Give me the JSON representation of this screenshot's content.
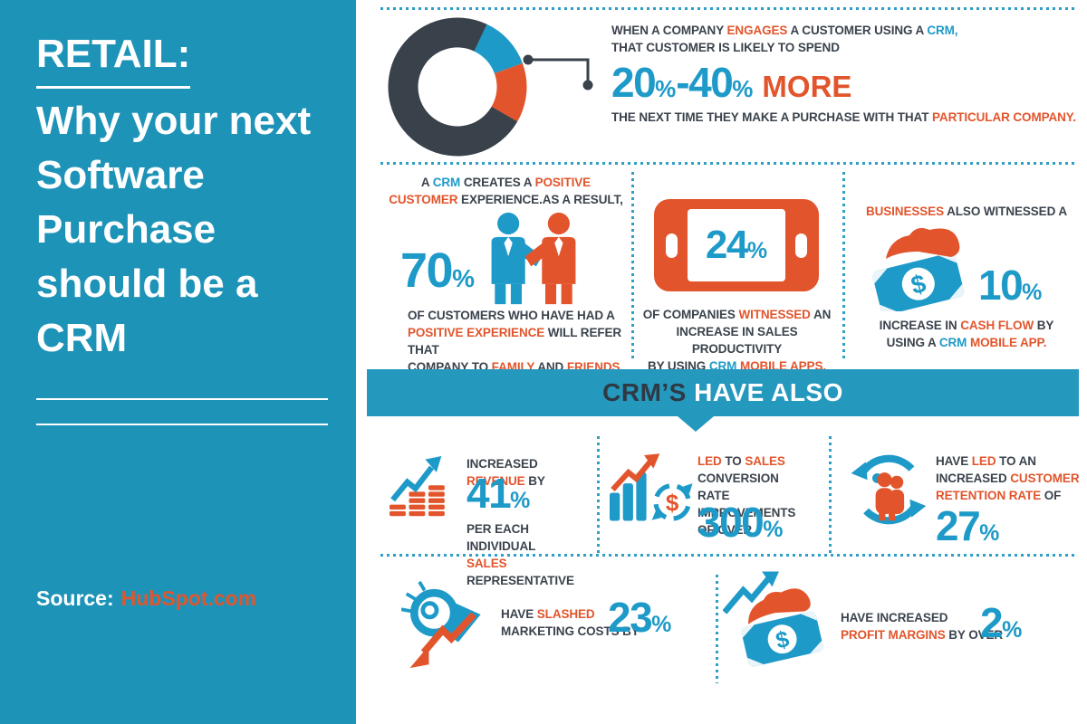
{
  "palette": {
    "sidebar_blue": "#1E93B8",
    "banner_blue": "#2598BE",
    "accent_blue": "#1E9AC8",
    "accent_orange": "#E2552C",
    "dark_text": "#3B434D",
    "dot_line_blue": "#2E9FC6",
    "donut_charcoal": "#39414B"
  },
  "sidebar": {
    "title_heading": "RETAIL:",
    "title_rest": "Why your next Software Purchase should be a CRM",
    "source_label": "Source:",
    "source_value": "HubSpot.com"
  },
  "icons": {
    "dollar": "$"
  },
  "banner": {
    "segments": [
      {
        "t": "CRM’S",
        "c": "navy"
      },
      {
        "t": " HAVE ALSO",
        "c": "white"
      }
    ]
  },
  "section_engage": {
    "intro_line1": [
      {
        "t": "WHEN A COMPANY ",
        "c": "dark"
      },
      {
        "t": "ENGAGES",
        "c": "orange"
      },
      {
        "t": " A CUSTOMER USING A ",
        "c": "dark"
      },
      {
        "t": "CRM,",
        "c": "blue"
      }
    ],
    "intro_line2": [
      {
        "t": "THAT CUSTOMER IS LIKELY TO SPEND",
        "c": "dark"
      }
    ],
    "stat": {
      "num1": "20",
      "pct1": "%",
      "dash": "-",
      "num2": "40",
      "pct2": "%",
      "more": "MORE"
    },
    "outro": [
      {
        "t": "THE NEXT TIME THEY MAKE A PURCHASE WITH THAT ",
        "c": "dark"
      },
      {
        "t": "PARTICULAR COMPANY.",
        "c": "orange"
      }
    ],
    "donut_segments": [
      {
        "name": "engaged-share",
        "color": "#1E9AC8",
        "start_deg": 25,
        "end_deg": 70
      },
      {
        "name": "spend-share",
        "color": "#E2552C",
        "start_deg": 70,
        "end_deg": 120
      },
      {
        "name": "remainder",
        "color": "#39414B",
        "start_deg": 120,
        "end_deg": 385
      }
    ]
  },
  "section_experience": {
    "heading_line1": [
      {
        "t": "A ",
        "c": "dark"
      },
      {
        "t": "CRM",
        "c": "blue"
      },
      {
        "t": " CREATES A ",
        "c": "dark"
      },
      {
        "t": "POSITIVE",
        "c": "orange"
      }
    ],
    "heading_line2": [
      {
        "t": "CUSTOMER",
        "c": "orange"
      },
      {
        "t": " EXPERIENCE.AS A RESULT,",
        "c": "dark"
      }
    ],
    "stat": {
      "num": "70",
      "pct": "%"
    },
    "caption_line1": [
      {
        "t": "OF CUSTOMERS WHO HAVE HAD A",
        "c": "dark"
      }
    ],
    "caption_line2": [
      {
        "t": "POSITIVE EXPERIENCE",
        "c": "orange"
      },
      {
        "t": " WILL REFER THAT",
        "c": "dark"
      }
    ],
    "caption_line3": [
      {
        "t": "COMPANY TO ",
        "c": "dark"
      },
      {
        "t": "FAMILY",
        "c": "orange"
      },
      {
        "t": " AND ",
        "c": "dark"
      },
      {
        "t": "FRIENDS.",
        "c": "orange"
      }
    ]
  },
  "section_mobile": {
    "stat": {
      "num": "24",
      "pct": "%"
    },
    "caption_line1": [
      {
        "t": "OF COMPANIES ",
        "c": "dark"
      },
      {
        "t": "WITNESSED",
        "c": "orange"
      },
      {
        "t": " AN",
        "c": "dark"
      }
    ],
    "caption_line2": [
      {
        "t": "INCREASE IN SALES PRODUCTIVITY",
        "c": "dark"
      }
    ],
    "caption_line3": [
      {
        "t": "BY USING ",
        "c": "dark"
      },
      {
        "t": "CRM",
        "c": "blue"
      },
      {
        "t": " ",
        "c": "dark"
      },
      {
        "t": "MOBILE APPS.",
        "c": "orange"
      }
    ]
  },
  "section_cashflow": {
    "heading": [
      {
        "t": "BUSINESSES",
        "c": "orange"
      },
      {
        "t": " ALSO WITNESSED A",
        "c": "dark"
      }
    ],
    "stat": {
      "num": "10",
      "pct": "%"
    },
    "caption_line1": [
      {
        "t": "INCREASE IN ",
        "c": "dark"
      },
      {
        "t": "CASH FLOW",
        "c": "orange"
      },
      {
        "t": " BY",
        "c": "dark"
      }
    ],
    "caption_line2": [
      {
        "t": "USING A ",
        "c": "dark"
      },
      {
        "t": "CRM",
        "c": "blue"
      },
      {
        "t": " ",
        "c": "dark"
      },
      {
        "t": "MOBILE APP.",
        "c": "orange"
      }
    ]
  },
  "section_revenue": {
    "line1": [
      {
        "t": "INCREASED ",
        "c": "dark"
      },
      {
        "t": "REVENUE",
        "c": "orange"
      },
      {
        "t": " BY",
        "c": "dark"
      }
    ],
    "stat": {
      "num": "41",
      "pct": "%"
    },
    "line2": [
      {
        "t": "PER EACH INDIVIDUAL",
        "c": "dark"
      }
    ],
    "line3": [
      {
        "t": "SALES",
        "c": "orange"
      },
      {
        "t": " REPRESENTATIVE",
        "c": "dark"
      }
    ]
  },
  "section_conversion": {
    "line1": [
      {
        "t": "LED",
        "c": "orange"
      },
      {
        "t": " TO ",
        "c": "dark"
      },
      {
        "t": "SALES",
        "c": "orange"
      },
      {
        "t": " CONVERSION",
        "c": "dark"
      }
    ],
    "line2": [
      {
        "t": "RATE IMPROVEMENTS",
        "c": "dark"
      }
    ],
    "line3": [
      {
        "t": "OF OVER",
        "c": "dark"
      }
    ],
    "stat": {
      "num": "300",
      "pct": "%"
    }
  },
  "section_retention": {
    "line1": [
      {
        "t": "HAVE ",
        "c": "dark"
      },
      {
        "t": "LED",
        "c": "orange"
      },
      {
        "t": " TO AN",
        "c": "dark"
      }
    ],
    "line2": [
      {
        "t": "INCREASED ",
        "c": "dark"
      },
      {
        "t": "CUSTOMER",
        "c": "orange"
      }
    ],
    "line3": [
      {
        "t": "RETENTION RATE",
        "c": "orange"
      },
      {
        "t": " OF",
        "c": "dark"
      }
    ],
    "stat": {
      "num": "27",
      "pct": "%"
    }
  },
  "section_marketing": {
    "line1": [
      {
        "t": "HAVE ",
        "c": "dark"
      },
      {
        "t": "SLASHED",
        "c": "orange"
      }
    ],
    "line2": [
      {
        "t": "MARKETING COSTS BY",
        "c": "dark"
      }
    ],
    "stat": {
      "num": "23",
      "pct": "%"
    }
  },
  "section_profit": {
    "line1": [
      {
        "t": "HAVE INCREASED",
        "c": "dark"
      }
    ],
    "line2": [
      {
        "t": "PROFIT MARGINS",
        "c": "orange"
      },
      {
        "t": " BY OVER",
        "c": "dark"
      }
    ],
    "stat": {
      "num": "2",
      "pct": "%"
    }
  }
}
